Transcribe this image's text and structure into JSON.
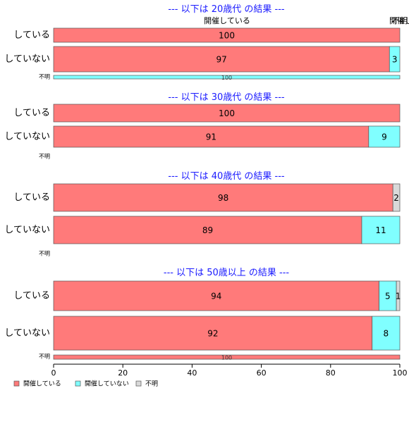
{
  "chart_data": {
    "type": "bar",
    "orientation": "horizontal",
    "stacked": true,
    "xlim": [
      0,
      100
    ],
    "x_ticks": [
      "0",
      "20",
      "40",
      "60",
      "80",
      "100"
    ],
    "colors": {
      "開催している": "#ff7a7a",
      "開催していない": "#80ffff",
      "不明": "#d9d9d9"
    },
    "legend": {
      "placement": "bottom-left",
      "entries": [
        "開催している",
        "開催していない",
        "不明"
      ]
    },
    "top_labels": [
      "開催している",
      "開催していない",
      "不明"
    ],
    "panels": [
      {
        "title": "--- 以下は 20歳代 の結果 ---",
        "rows": [
          {
            "label": "している",
            "values": [
              100,
              0,
              0
            ]
          },
          {
            "label": "していない",
            "values": [
              97,
              3,
              0
            ]
          },
          {
            "label": "不明",
            "values": [
              0,
              100,
              0
            ],
            "small": true
          }
        ]
      },
      {
        "title": "--- 以下は 30歳代 の結果 ---",
        "rows": [
          {
            "label": "している",
            "values": [
              100,
              0,
              0
            ]
          },
          {
            "label": "していない",
            "values": [
              91,
              9,
              0
            ]
          },
          {
            "label": "不明",
            "values": [],
            "small": true
          }
        ]
      },
      {
        "title": "--- 以下は 40歳代 の結果 ---",
        "rows": [
          {
            "label": "している",
            "values": [
              98,
              0,
              2
            ]
          },
          {
            "label": "していない",
            "values": [
              89,
              11,
              0
            ]
          },
          {
            "label": "不明",
            "values": [],
            "small": true
          }
        ]
      },
      {
        "title": "--- 以下は 50歳以上 の結果 ---",
        "rows": [
          {
            "label": "している",
            "values": [
              94,
              5,
              1
            ]
          },
          {
            "label": "していない",
            "values": [
              92,
              8,
              0
            ]
          },
          {
            "label": "不明",
            "values": [
              100,
              0,
              0
            ],
            "small": true
          }
        ]
      }
    ]
  }
}
